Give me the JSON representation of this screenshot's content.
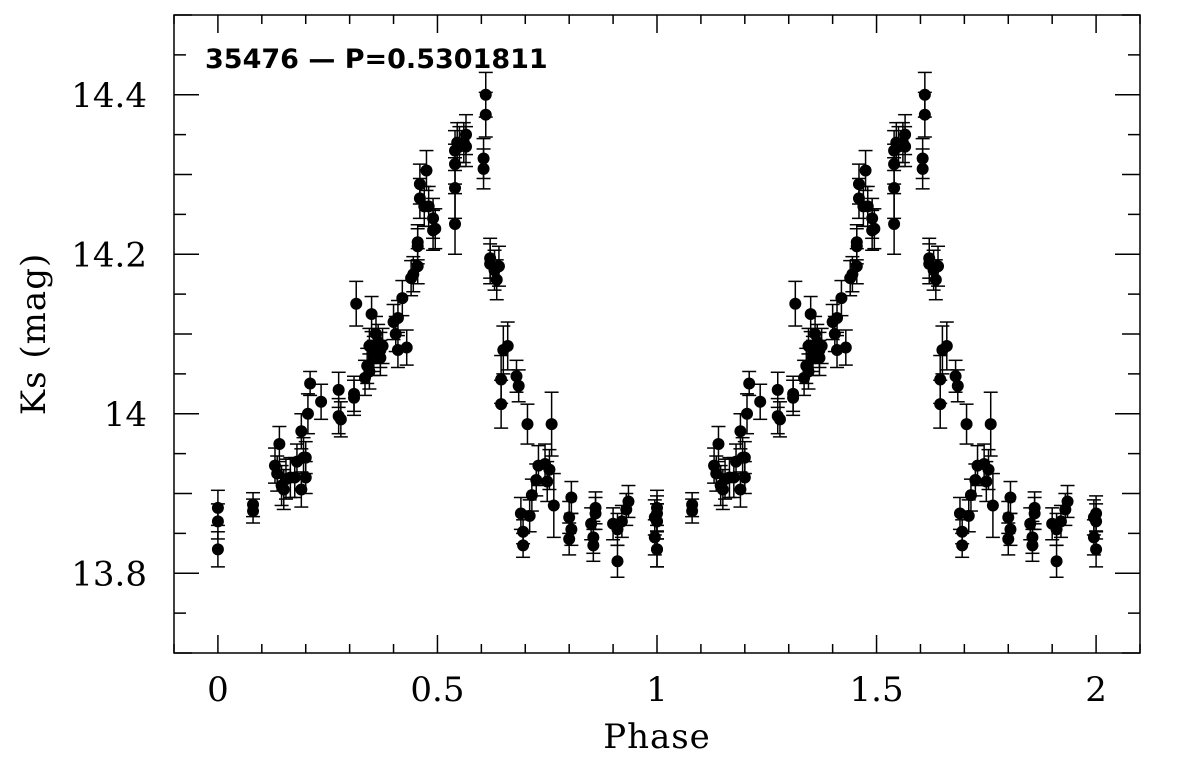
{
  "chart_data": {
    "type": "scatter",
    "title": "35476 — P=0.5301811",
    "xlabel": "Phase",
    "ylabel": "Ks (mag)",
    "xlim": [
      -0.1,
      2.1
    ],
    "ylim": [
      13.7,
      14.5
    ],
    "x_ticks": [
      0,
      0.5,
      1,
      1.5,
      2
    ],
    "x_tick_labels": [
      "0",
      "0.5",
      "1",
      "1.5",
      "2"
    ],
    "y_ticks": [
      13.8,
      14.0,
      14.2,
      14.4
    ],
    "y_tick_labels": [
      "13.8",
      "14",
      "14.2",
      "14.4"
    ],
    "grid": false,
    "legend": "none",
    "point_color": "#000000",
    "phase_repeat": 1,
    "series": [
      {
        "points": [
          [
            0.0,
            13.83,
            0.022
          ],
          [
            0.0,
            13.865,
            0.022
          ],
          [
            0.0,
            13.882,
            0.022
          ],
          [
            0.08,
            13.878,
            0.015
          ],
          [
            0.08,
            13.886,
            0.015
          ],
          [
            0.13,
            13.935,
            0.022
          ],
          [
            0.135,
            13.925,
            0.022
          ],
          [
            0.14,
            13.962,
            0.022
          ],
          [
            0.145,
            13.91,
            0.025
          ],
          [
            0.15,
            13.905,
            0.025
          ],
          [
            0.155,
            13.918,
            0.025
          ],
          [
            0.165,
            13.92,
            0.025
          ],
          [
            0.175,
            13.92,
            0.025
          ],
          [
            0.18,
            13.94,
            0.022
          ],
          [
            0.19,
            13.978,
            0.022
          ],
          [
            0.19,
            13.905,
            0.022
          ],
          [
            0.195,
            13.945,
            0.025
          ],
          [
            0.2,
            13.92,
            0.02
          ],
          [
            0.2,
            13.945,
            0.02
          ],
          [
            0.205,
            14.0,
            0.025
          ],
          [
            0.21,
            14.038,
            0.015
          ],
          [
            0.235,
            14.015,
            0.022
          ],
          [
            0.275,
            14.03,
            0.022
          ],
          [
            0.275,
            13.997,
            0.022
          ],
          [
            0.28,
            13.993,
            0.022
          ],
          [
            0.31,
            14.02,
            0.022
          ],
          [
            0.31,
            14.025,
            0.022
          ],
          [
            0.315,
            14.138,
            0.028
          ],
          [
            0.335,
            14.045,
            0.022
          ],
          [
            0.34,
            14.06,
            0.022
          ],
          [
            0.345,
            14.085,
            0.022
          ],
          [
            0.345,
            14.053,
            0.022
          ],
          [
            0.35,
            14.125,
            0.022
          ],
          [
            0.355,
            14.075,
            0.022
          ],
          [
            0.355,
            14.07,
            0.022
          ],
          [
            0.36,
            14.1,
            0.022
          ],
          [
            0.365,
            14.09,
            0.022
          ],
          [
            0.37,
            14.07,
            0.022
          ],
          [
            0.37,
            14.08,
            0.022
          ],
          [
            0.375,
            14.085,
            0.022
          ],
          [
            0.4,
            14.115,
            0.022
          ],
          [
            0.405,
            14.1,
            0.022
          ],
          [
            0.41,
            14.12,
            0.022
          ],
          [
            0.41,
            14.08,
            0.022
          ],
          [
            0.42,
            14.145,
            0.022
          ],
          [
            0.43,
            14.083,
            0.022
          ],
          [
            0.44,
            14.17,
            0.022
          ],
          [
            0.445,
            14.175,
            0.022
          ],
          [
            0.455,
            14.185,
            0.022
          ],
          [
            0.455,
            14.21,
            0.022
          ],
          [
            0.455,
            14.215,
            0.022
          ],
          [
            0.46,
            14.27,
            0.025
          ],
          [
            0.46,
            14.288,
            0.025
          ],
          [
            0.47,
            14.26,
            0.025
          ],
          [
            0.475,
            14.305,
            0.025
          ],
          [
            0.48,
            14.26,
            0.025
          ],
          [
            0.49,
            14.23,
            0.025
          ],
          [
            0.49,
            14.245,
            0.025
          ],
          [
            0.495,
            14.232,
            0.025
          ],
          [
            0.54,
            14.238,
            0.038
          ],
          [
            0.54,
            14.283,
            0.038
          ],
          [
            0.54,
            14.313,
            0.025
          ],
          [
            0.54,
            14.33,
            0.025
          ],
          [
            0.545,
            14.34,
            0.025
          ],
          [
            0.55,
            14.335,
            0.025
          ],
          [
            0.56,
            14.34,
            0.025
          ],
          [
            0.565,
            14.335,
            0.025
          ],
          [
            0.565,
            14.35,
            0.025
          ],
          [
            0.605,
            14.307,
            0.025
          ],
          [
            0.605,
            14.32,
            0.025
          ],
          [
            0.61,
            14.375,
            0.028
          ],
          [
            0.61,
            14.4,
            0.028
          ],
          [
            0.62,
            14.195,
            0.025
          ],
          [
            0.62,
            14.188,
            0.025
          ],
          [
            0.63,
            14.18,
            0.025
          ],
          [
            0.635,
            14.168,
            0.025
          ],
          [
            0.64,
            14.185,
            0.025
          ],
          [
            0.645,
            14.043,
            0.03
          ],
          [
            0.645,
            14.012,
            0.03
          ],
          [
            0.65,
            14.08,
            0.03
          ],
          [
            0.66,
            14.085,
            0.03
          ],
          [
            0.68,
            14.047,
            0.02
          ],
          [
            0.685,
            14.035,
            0.02
          ],
          [
            0.69,
            13.875,
            0.02
          ],
          [
            0.695,
            13.835,
            0.015
          ],
          [
            0.695,
            13.852,
            0.015
          ],
          [
            0.705,
            13.987,
            0.025
          ],
          [
            0.71,
            13.872,
            0.02
          ],
          [
            0.715,
            13.898,
            0.02
          ],
          [
            0.725,
            13.917,
            0.02
          ],
          [
            0.73,
            13.935,
            0.025
          ],
          [
            0.745,
            13.937,
            0.025
          ],
          [
            0.75,
            13.915,
            0.025
          ],
          [
            0.755,
            13.93,
            0.025
          ],
          [
            0.76,
            13.987,
            0.04
          ],
          [
            0.765,
            13.885,
            0.04
          ],
          [
            0.8,
            13.843,
            0.02
          ],
          [
            0.8,
            13.87,
            0.02
          ],
          [
            0.805,
            13.895,
            0.02
          ],
          [
            0.805,
            13.855,
            0.02
          ],
          [
            0.85,
            13.862,
            0.02
          ],
          [
            0.855,
            13.835,
            0.02
          ],
          [
            0.855,
            13.845,
            0.02
          ],
          [
            0.86,
            13.875,
            0.02
          ],
          [
            0.86,
            13.882,
            0.02
          ],
          [
            0.9,
            13.862,
            0.02
          ],
          [
            0.91,
            13.815,
            0.02
          ],
          [
            0.91,
            13.855,
            0.02
          ],
          [
            0.92,
            13.865,
            0.02
          ],
          [
            0.93,
            13.88,
            0.02
          ],
          [
            0.935,
            13.89,
            0.02
          ],
          [
            0.995,
            13.87,
            0.022
          ],
          [
            0.995,
            13.845,
            0.022
          ],
          [
            1.0,
            13.865,
            0.022
          ],
          [
            1.0,
            13.875,
            0.022
          ],
          [
            1.0,
            13.83,
            0.022
          ]
        ]
      }
    ]
  }
}
